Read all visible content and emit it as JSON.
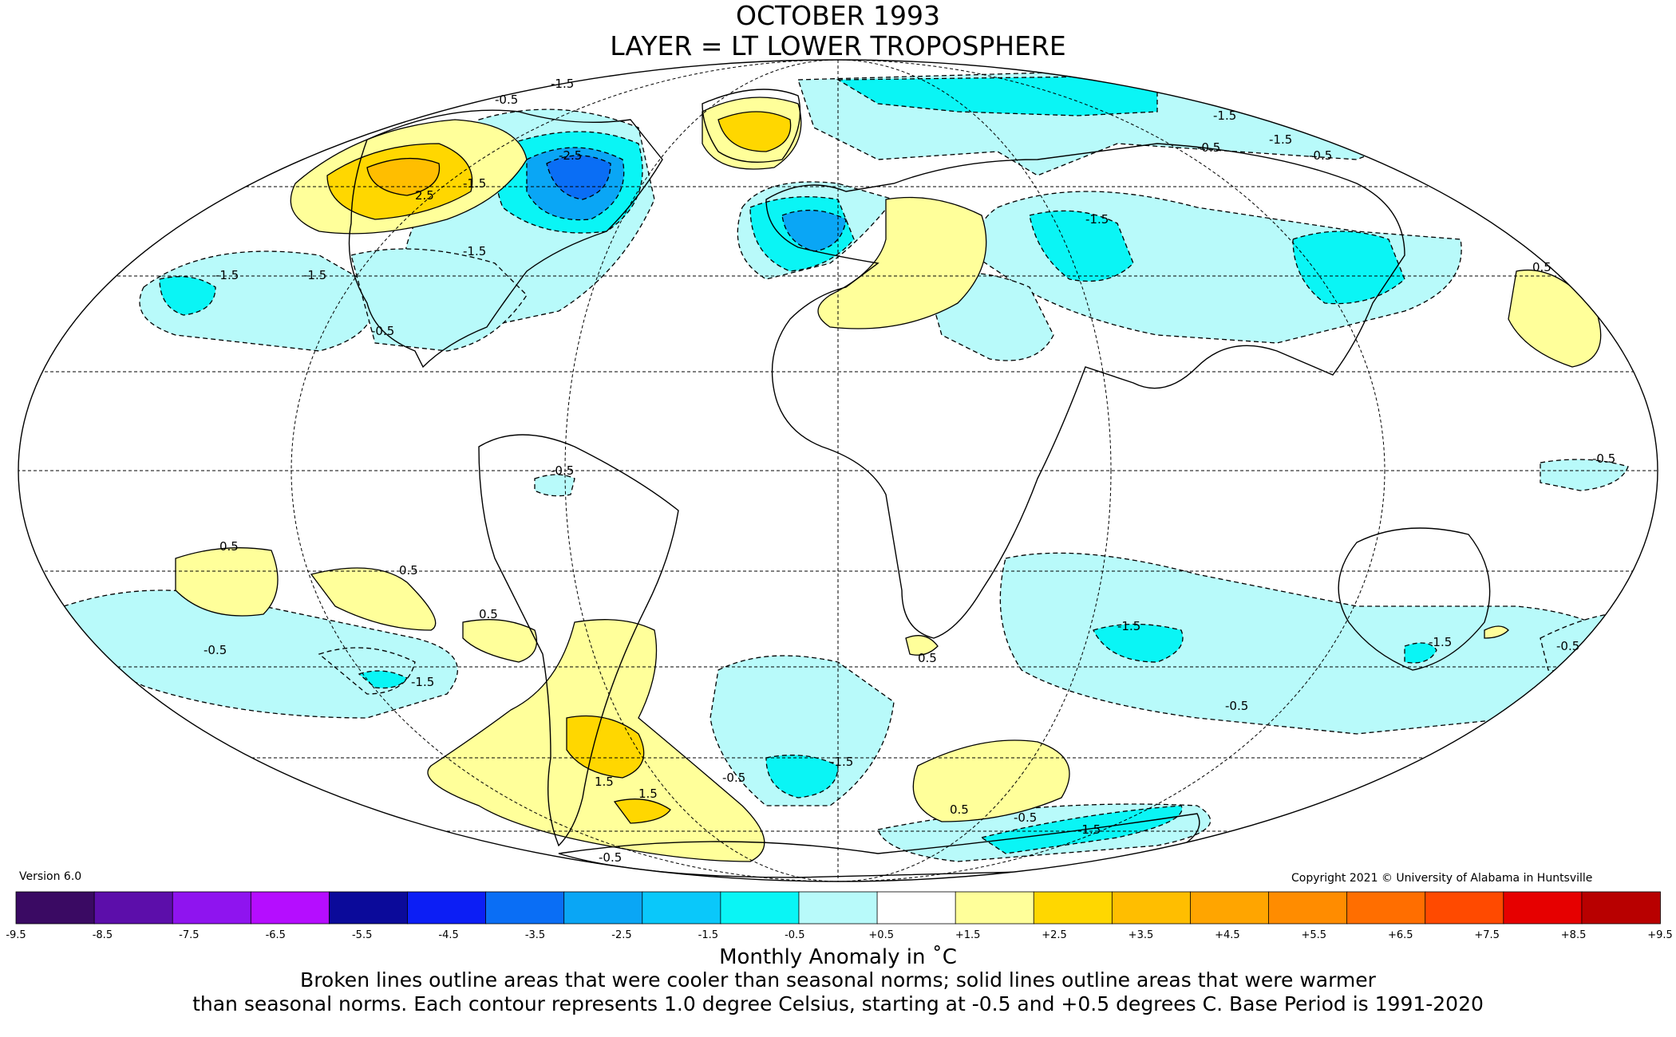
{
  "header": {
    "title_line1": "OCTOBER 1993",
    "title_line2": "LAYER = LT LOWER TROPOSPHERE"
  },
  "version_label": "Version 6.0",
  "copyright": "Copyright 2021 © University of Alabama in Huntsville",
  "colorbar": {
    "colors": [
      "#3a0a63",
      "#5c0eaa",
      "#8f14ef",
      "#b50dff",
      "#0b0a9a",
      "#0c1ef5",
      "#0a6ef5",
      "#0aa6f5",
      "#0ac8fa",
      "#0af5f5",
      "#b8fafa",
      "#ffffff",
      "#ffff9a",
      "#ffd700",
      "#ffbe00",
      "#ffa500",
      "#ff8c00",
      "#ff6e00",
      "#ff4a00",
      "#e60000",
      "#b80000"
    ],
    "ticks": [
      "-9.5",
      "-8.5",
      "-7.5",
      "-6.5",
      "-5.5",
      "-4.5",
      "-3.5",
      "-2.5",
      "-1.5",
      "-0.5",
      "+0.5",
      "+1.5",
      "+2.5",
      "+3.5",
      "+4.5",
      "+5.5",
      "+6.5",
      "+7.5",
      "+8.5",
      "+9.5"
    ],
    "ticks_low": [
      "-9.5",
      "-8.5",
      "-7.5",
      "-6.5",
      "-5.5",
      "-4.5",
      "-3.5",
      "-2.5",
      "-1.5",
      "-0.5"
    ],
    "label": "Monthly Anomaly in ˚C"
  },
  "caption": {
    "line1": "Broken lines outline areas that were cooler than seasonal norms; solid lines outline areas that were warmer",
    "line2": "than seasonal norms. Each contour represents 1.0 degree Celsius, starting at -0.5 and +0.5 degrees C. Base Period is 1991-2020"
  },
  "map": {
    "projection": "Mollweide",
    "map_labels": [
      "-2.5",
      "-1.5",
      "-0.5",
      "-1.5",
      "2.5",
      "-1.5",
      "-1.5",
      "-1.5",
      "-1.5",
      "-1.5",
      "-1.5",
      "0.5",
      "-0.5",
      "-0.5",
      "0.5",
      "0.5",
      "0.5",
      "-0.5",
      "-1.5",
      "1.5",
      "1.5",
      "-0.5",
      "-1.5",
      "-0.5",
      "-1.5",
      "0.5",
      "-0.5",
      "-0.5",
      "-1.5",
      "-1.5",
      "-0.5",
      "-0.5",
      "0.5",
      "-0.5",
      "-0.5"
    ]
  }
}
